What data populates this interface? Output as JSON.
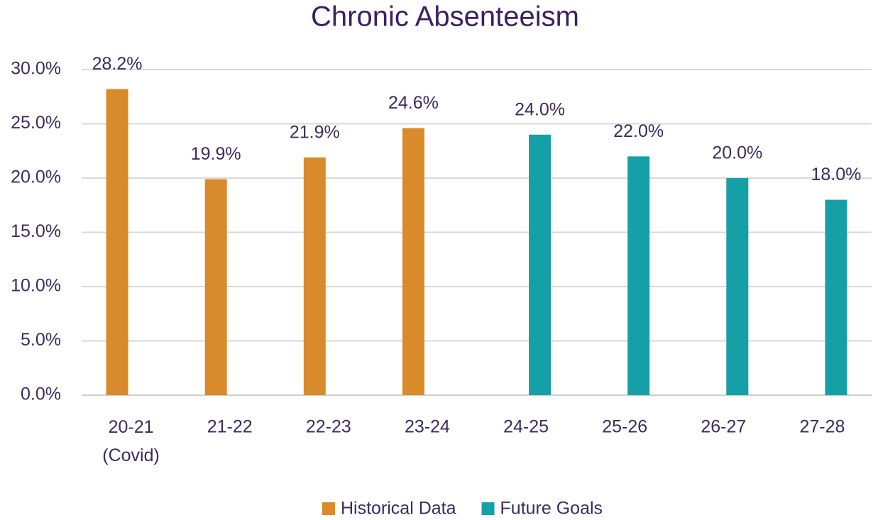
{
  "chart_data": {
    "type": "bar",
    "title": "Chronic Absenteeism",
    "categories": [
      "20-21 (Covid)",
      "21-22",
      "22-23",
      "23-24",
      "24-25",
      "25-26",
      "26-27",
      "27-28"
    ],
    "series": [
      {
        "name": "Historical Data",
        "color": "#d98a2b",
        "values": [
          28.2,
          19.9,
          21.9,
          24.6,
          null,
          null,
          null,
          null
        ],
        "value_labels": [
          "28.2%",
          "19.9%",
          "21.9%",
          "24.6%",
          null,
          null,
          null,
          null
        ]
      },
      {
        "name": "Future Goals",
        "color": "#15a0a8",
        "values": [
          null,
          null,
          null,
          null,
          24.0,
          22.0,
          20.0,
          18.0
        ],
        "value_labels": [
          null,
          null,
          null,
          null,
          "24.0%",
          "22.0%",
          "20.0%",
          "18.0%"
        ]
      }
    ],
    "ylim": [
      0,
      30
    ],
    "yticks": [
      {
        "value": 0,
        "label": "0.0%"
      },
      {
        "value": 5,
        "label": "5.0%"
      },
      {
        "value": 10,
        "label": "10.0%"
      },
      {
        "value": 15,
        "label": "15.0%"
      },
      {
        "value": 20,
        "label": "20.0%"
      },
      {
        "value": 25,
        "label": "25.0%"
      },
      {
        "value": 30,
        "label": "30.0%"
      }
    ],
    "grid": true,
    "legend": "bottom"
  }
}
